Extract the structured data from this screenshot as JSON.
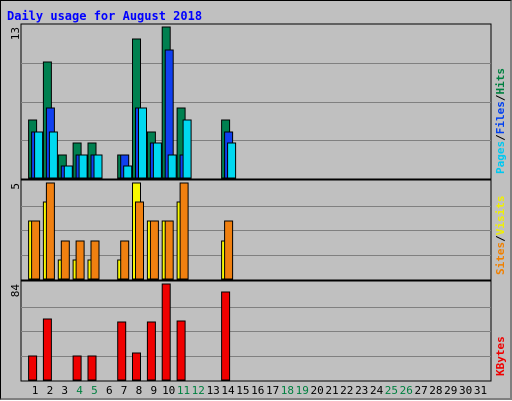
{
  "chart_data": {
    "type": "bar",
    "title": "Daily usage for August 2018",
    "days": [
      "1",
      "2",
      "3",
      "4",
      "5",
      "6",
      "7",
      "8",
      "9",
      "10",
      "11",
      "12",
      "13",
      "14",
      "15",
      "16",
      "17",
      "18",
      "19",
      "20",
      "21",
      "22",
      "23",
      "24",
      "25",
      "26",
      "27",
      "28",
      "29",
      "30",
      "31"
    ],
    "weekend_days": [
      "4",
      "5",
      "11",
      "12",
      "18",
      "19",
      "25",
      "26"
    ],
    "panels": [
      {
        "name": "hits-files-pages",
        "ymax_label": "13",
        "ymax": 13,
        "legend": [
          "Pages",
          "Files",
          "Hits"
        ],
        "legend_colors": [
          "#00c8f0",
          "#0040f0",
          "#008040"
        ],
        "series": [
          {
            "name": "Hits",
            "color": "#008050",
            "values": [
              5,
              10,
              2,
              3,
              3,
              0,
              2,
              12,
              4,
              13,
              6,
              0,
              0,
              5,
              0,
              0,
              0,
              0,
              0,
              0,
              0,
              0,
              0,
              0,
              0,
              0,
              0,
              0,
              0,
              0,
              0
            ]
          },
          {
            "name": "Files",
            "color": "#1040f0",
            "values": [
              4,
              6,
              1,
              2,
              2,
              0,
              2,
              6,
              3,
              11,
              2,
              0,
              0,
              4,
              0,
              0,
              0,
              0,
              0,
              0,
              0,
              0,
              0,
              0,
              0,
              0,
              0,
              0,
              0,
              0,
              0
            ]
          },
          {
            "name": "Pages",
            "color": "#00d8f0",
            "values": [
              4,
              4,
              1,
              2,
              2,
              0,
              1,
              6,
              3,
              2,
              5,
              0,
              0,
              3,
              0,
              0,
              0,
              0,
              0,
              0,
              0,
              0,
              0,
              0,
              0,
              0,
              0,
              0,
              0,
              0,
              0
            ]
          }
        ]
      },
      {
        "name": "visits-sites",
        "ymax_label": "5",
        "ymax": 5,
        "legend": [
          "Sites",
          "Visits"
        ],
        "legend_colors": [
          "#f08000",
          "#f0f000"
        ],
        "series": [
          {
            "name": "Visits",
            "color": "#f8f800",
            "values": [
              3,
              4,
              1,
              1,
              1,
              0,
              1,
              5,
              3,
              3,
              4,
              0,
              0,
              2,
              0,
              0,
              0,
              0,
              0,
              0,
              0,
              0,
              0,
              0,
              0,
              0,
              0,
              0,
              0,
              0,
              0
            ]
          },
          {
            "name": "Sites",
            "color": "#f08010",
            "values": [
              3,
              5,
              2,
              2,
              2,
              0,
              2,
              4,
              3,
              3,
              5,
              0,
              0,
              3,
              0,
              0,
              0,
              0,
              0,
              0,
              0,
              0,
              0,
              0,
              0,
              0,
              0,
              0,
              0,
              0,
              0
            ]
          }
        ]
      },
      {
        "name": "kbytes",
        "ymax_label": "84",
        "ymax": 84,
        "legend": [
          "KBytes"
        ],
        "legend_colors": [
          "#f00000"
        ],
        "series": [
          {
            "name": "KBytes",
            "color": "#f00000",
            "values": [
              21,
              53,
              0,
              21,
              21,
              0,
              51,
              24,
              51,
              84,
              52,
              0,
              0,
              77,
              0,
              0,
              0,
              0,
              0,
              0,
              0,
              0,
              0,
              0,
              0,
              0,
              0,
              0,
              0,
              0,
              0
            ]
          }
        ]
      }
    ],
    "grid": true,
    "colors": {
      "background": "#c0c0c0",
      "title": "#0000ff",
      "weekday_label": "#000000",
      "weekend_label": "#008040",
      "grid": "#808080",
      "separator": "#0000ff"
    }
  }
}
